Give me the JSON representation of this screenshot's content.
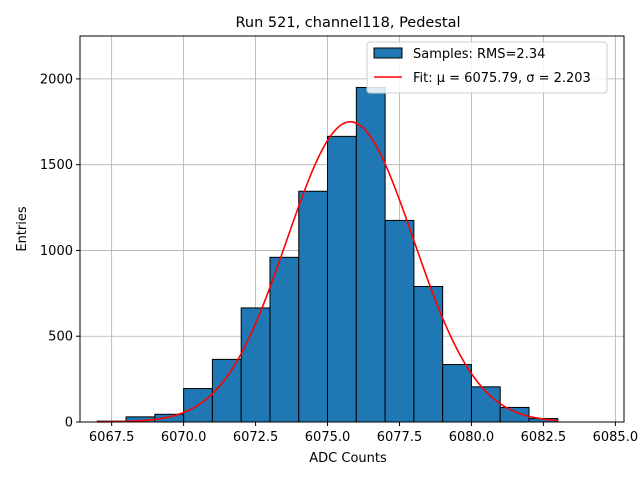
{
  "chart_data": {
    "type": "bar",
    "title": "Run 521, channel118, Pedestal",
    "xlabel": "ADC Counts",
    "ylabel": "Entries",
    "xlim": [
      6066.4,
      6085.3
    ],
    "ylim": [
      0,
      2250
    ],
    "x_ticks": [
      6067.5,
      6070.0,
      6072.5,
      6075.0,
      6077.5,
      6080.0,
      6082.5,
      6085.0
    ],
    "x_tick_labels": [
      "6067.5",
      "6070.0",
      "6072.5",
      "6075.0",
      "6077.5",
      "6080.0",
      "6082.5",
      "6085.0"
    ],
    "y_ticks": [
      0,
      500,
      1000,
      1500,
      2000
    ],
    "y_tick_labels": [
      "0",
      "500",
      "1000",
      "1500",
      "2000"
    ],
    "grid": true,
    "legend_position": "top-right",
    "histogram": {
      "name": "Samples: RMS=2.34",
      "color": "#1f77b4",
      "edge_color": "#000000",
      "bin_edges": [
        6067,
        6068,
        6069,
        6070,
        6071,
        6072,
        6073,
        6074,
        6075,
        6076,
        6077,
        6078,
        6079,
        6080,
        6081,
        6082,
        6083,
        6084
      ],
      "counts": [
        5,
        30,
        45,
        195,
        365,
        665,
        960,
        1345,
        1665,
        1950,
        1175,
        790,
        335,
        205,
        85,
        20,
        0
      ]
    },
    "fit": {
      "name": "Fit: μ = 6075.79, σ = 2.203",
      "color": "#ff0000",
      "mu": 6075.79,
      "sigma": 2.203,
      "amplitude": 1750,
      "x_range": [
        6067,
        6083
      ]
    }
  }
}
